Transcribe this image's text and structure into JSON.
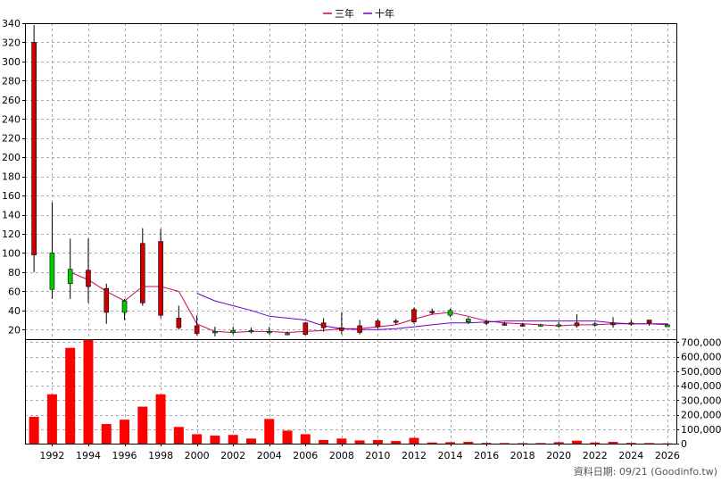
{
  "chart_data": {
    "type": "candlestick-with-volume",
    "legend": [
      {
        "name": "三年",
        "color": "#cc0066"
      },
      {
        "name": "十年",
        "color": "#6a00cc"
      }
    ],
    "legend_position": "top-center",
    "footer": "資料日期: 09/21  (Goodinfo.tw)",
    "price_axis": {
      "ylim": [
        10,
        340
      ],
      "ticks": [
        20,
        40,
        60,
        80,
        100,
        120,
        140,
        160,
        180,
        200,
        220,
        240,
        260,
        280,
        300,
        320,
        340
      ]
    },
    "volume_axis": {
      "ylim": [
        0,
        720000
      ],
      "ticks": [
        0,
        100000,
        200000,
        300000,
        400000,
        500000,
        600000,
        700000
      ],
      "tick_labels": [
        "0",
        "100,000",
        "200,000",
        "300,000",
        "400,000",
        "500,000",
        "600,000",
        "700,000"
      ]
    },
    "x_axis": {
      "xlim": [
        1990.5,
        2026.5
      ],
      "ticks": [
        1992,
        1994,
        1996,
        1998,
        2000,
        2002,
        2004,
        2006,
        2008,
        2010,
        2012,
        2014,
        2016,
        2018,
        2020,
        2022,
        2024,
        2026
      ],
      "grid": true
    },
    "candles": [
      {
        "year": 1991,
        "open": 98,
        "high": 338,
        "low": 80,
        "close": 320
      },
      {
        "year": 1992,
        "open": 100,
        "high": 153,
        "low": 52,
        "close": 62
      },
      {
        "year": 1993,
        "open": 83,
        "high": 115,
        "low": 52,
        "close": 68
      },
      {
        "year": 1994,
        "open": 65,
        "high": 115,
        "low": 48,
        "close": 82
      },
      {
        "year": 1995,
        "open": 38,
        "high": 68,
        "low": 26,
        "close": 63
      },
      {
        "year": 1996,
        "open": 50,
        "high": 52,
        "low": 30,
        "close": 38
      },
      {
        "year": 1997,
        "open": 48,
        "high": 126,
        "low": 45,
        "close": 110
      },
      {
        "year": 1998,
        "open": 35,
        "high": 125,
        "low": 32,
        "close": 112
      },
      {
        "year": 1999,
        "open": 22,
        "high": 45,
        "low": 20,
        "close": 32
      },
      {
        "year": 2000,
        "open": 16,
        "high": 35,
        "low": 14,
        "close": 24
      },
      {
        "year": 2001,
        "open": 18,
        "high": 23,
        "low": 13,
        "close": 17
      },
      {
        "year": 2002,
        "open": 19,
        "high": 23,
        "low": 15,
        "close": 17
      },
      {
        "year": 2003,
        "open": 19,
        "high": 22,
        "low": 16,
        "close": 18
      },
      {
        "year": 2004,
        "open": 18,
        "high": 23,
        "low": 15,
        "close": 17
      },
      {
        "year": 2005,
        "open": 16,
        "high": 18,
        "low": 14,
        "close": 15
      },
      {
        "year": 2006,
        "open": 15,
        "high": 28,
        "low": 14,
        "close": 27
      },
      {
        "year": 2007,
        "open": 22,
        "high": 32,
        "low": 18,
        "close": 27
      },
      {
        "year": 2008,
        "open": 19,
        "high": 38,
        "low": 15,
        "close": 22
      },
      {
        "year": 2009,
        "open": 17,
        "high": 30,
        "low": 15,
        "close": 24
      },
      {
        "year": 2010,
        "open": 23,
        "high": 31,
        "low": 21,
        "close": 29
      },
      {
        "year": 2011,
        "open": 28,
        "high": 31,
        "low": 25,
        "close": 29
      },
      {
        "year": 2012,
        "open": 28,
        "high": 43,
        "low": 26,
        "close": 41
      },
      {
        "year": 2013,
        "open": 38,
        "high": 42,
        "low": 36,
        "close": 39
      },
      {
        "year": 2014,
        "open": 40,
        "high": 42,
        "low": 33,
        "close": 35
      },
      {
        "year": 2015,
        "open": 31,
        "high": 33,
        "low": 26,
        "close": 28
      },
      {
        "year": 2016,
        "open": 27,
        "high": 30,
        "low": 25,
        "close": 28
      },
      {
        "year": 2017,
        "open": 26,
        "high": 28,
        "low": 24,
        "close": 26
      },
      {
        "year": 2018,
        "open": 25,
        "high": 27,
        "low": 23,
        "close": 25
      },
      {
        "year": 2019,
        "open": 25,
        "high": 26,
        "low": 23,
        "close": 24
      },
      {
        "year": 2020,
        "open": 25,
        "high": 28,
        "low": 22,
        "close": 24
      },
      {
        "year": 2021,
        "open": 24,
        "high": 36,
        "low": 22,
        "close": 27
      },
      {
        "year": 2022,
        "open": 26,
        "high": 28,
        "low": 23,
        "close": 25
      },
      {
        "year": 2023,
        "open": 25,
        "high": 33,
        "low": 22,
        "close": 27
      },
      {
        "year": 2024,
        "open": 26,
        "high": 30,
        "low": 24,
        "close": 27
      },
      {
        "year": 2025,
        "open": 27,
        "high": 30,
        "low": 24,
        "close": 30
      },
      {
        "year": 2026,
        "open": 25,
        "high": 26,
        "low": 23,
        "close": 23
      }
    ],
    "series": [
      {
        "name": "三年",
        "points": [
          [
            1993,
            80
          ],
          [
            1994,
            72
          ],
          [
            1995,
            60
          ],
          [
            1996,
            50
          ],
          [
            1997,
            65
          ],
          [
            1998,
            65
          ],
          [
            1999,
            60
          ],
          [
            2000,
            26
          ],
          [
            2001,
            18
          ],
          [
            2002,
            17
          ],
          [
            2003,
            18
          ],
          [
            2004,
            18
          ],
          [
            2005,
            17
          ],
          [
            2006,
            18
          ],
          [
            2007,
            19
          ],
          [
            2008,
            21
          ],
          [
            2009,
            21
          ],
          [
            2010,
            23
          ],
          [
            2011,
            25
          ],
          [
            2012,
            31
          ],
          [
            2013,
            36
          ],
          [
            2014,
            38
          ],
          [
            2015,
            34
          ],
          [
            2016,
            29
          ],
          [
            2017,
            27
          ],
          [
            2018,
            26
          ],
          [
            2019,
            25
          ],
          [
            2020,
            24
          ],
          [
            2021,
            25
          ],
          [
            2022,
            25
          ],
          [
            2023,
            26
          ],
          [
            2024,
            26
          ],
          [
            2025,
            26
          ],
          [
            2026,
            25
          ]
        ]
      },
      {
        "name": "十年",
        "points": [
          [
            2000,
            58
          ],
          [
            2001,
            50
          ],
          [
            2002,
            45
          ],
          [
            2003,
            40
          ],
          [
            2004,
            34
          ],
          [
            2005,
            32
          ],
          [
            2006,
            30
          ],
          [
            2007,
            24
          ],
          [
            2008,
            21
          ],
          [
            2009,
            20
          ],
          [
            2010,
            20
          ],
          [
            2011,
            21
          ],
          [
            2012,
            23
          ],
          [
            2013,
            25
          ],
          [
            2014,
            27
          ],
          [
            2015,
            27
          ],
          [
            2016,
            28
          ],
          [
            2017,
            29
          ],
          [
            2018,
            29
          ],
          [
            2019,
            29
          ],
          [
            2020,
            29
          ],
          [
            2021,
            29
          ],
          [
            2022,
            29
          ],
          [
            2023,
            27
          ],
          [
            2024,
            26
          ],
          [
            2025,
            26
          ],
          [
            2026,
            26
          ]
        ]
      }
    ],
    "volume": [
      {
        "year": 1991,
        "value": 185000
      },
      {
        "year": 1992,
        "value": 340000
      },
      {
        "year": 1993,
        "value": 660000
      },
      {
        "year": 1994,
        "value": 720000
      },
      {
        "year": 1995,
        "value": 135000
      },
      {
        "year": 1996,
        "value": 165000
      },
      {
        "year": 1997,
        "value": 255000
      },
      {
        "year": 1998,
        "value": 340000
      },
      {
        "year": 1999,
        "value": 115000
      },
      {
        "year": 2000,
        "value": 65000
      },
      {
        "year": 2001,
        "value": 55000
      },
      {
        "year": 2002,
        "value": 60000
      },
      {
        "year": 2003,
        "value": 35000
      },
      {
        "year": 2004,
        "value": 170000
      },
      {
        "year": 2005,
        "value": 90000
      },
      {
        "year": 2006,
        "value": 65000
      },
      {
        "year": 2007,
        "value": 25000
      },
      {
        "year": 2008,
        "value": 35000
      },
      {
        "year": 2009,
        "value": 22000
      },
      {
        "year": 2010,
        "value": 25000
      },
      {
        "year": 2011,
        "value": 18000
      },
      {
        "year": 2012,
        "value": 40000
      },
      {
        "year": 2013,
        "value": 8000
      },
      {
        "year": 2014,
        "value": 10000
      },
      {
        "year": 2015,
        "value": 12000
      },
      {
        "year": 2016,
        "value": 5000
      },
      {
        "year": 2017,
        "value": 4000
      },
      {
        "year": 2018,
        "value": 3000
      },
      {
        "year": 2019,
        "value": 4000
      },
      {
        "year": 2020,
        "value": 10000
      },
      {
        "year": 2021,
        "value": 20000
      },
      {
        "year": 2022,
        "value": 8000
      },
      {
        "year": 2023,
        "value": 12000
      },
      {
        "year": 2024,
        "value": 5000
      },
      {
        "year": 2025,
        "value": 4000
      },
      {
        "year": 2026,
        "value": 2000
      }
    ],
    "colors": {
      "rise": "#cc0000",
      "fall": "#00cc00",
      "volume": "#ff0000",
      "wick": "#000000",
      "grid": "#aaaaaa"
    }
  }
}
